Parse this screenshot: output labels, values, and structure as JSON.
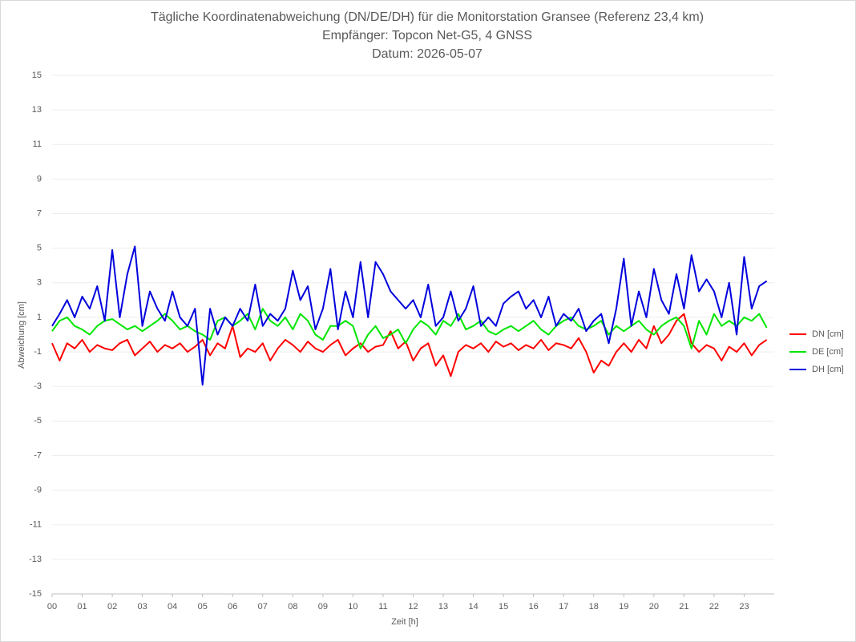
{
  "chart_data": {
    "type": "line",
    "title": "Tägliche Koordinatenabweichung (DN/DE/DH) für die Monitorstation Gransee (Referenz 23,4 km)",
    "subtitle": [
      "Empfänger: Topcon Net-G5, 4 GNSS",
      "Datum: 2026-05-07"
    ],
    "x_label": "Zeit [h]",
    "y_label": "Abweichung [cm]",
    "x": [
      0,
      0.25,
      0.5,
      0.75,
      1,
      1.25,
      1.5,
      1.75,
      2,
      2.25,
      2.5,
      2.75,
      3,
      3.25,
      3.5,
      3.75,
      4,
      4.25,
      4.5,
      4.75,
      5,
      5.25,
      5.5,
      5.75,
      6,
      6.25,
      6.5,
      6.75,
      7,
      7.25,
      7.5,
      7.75,
      8,
      8.25,
      8.5,
      8.75,
      9,
      9.25,
      9.5,
      9.75,
      10,
      10.25,
      10.5,
      10.75,
      11,
      11.25,
      11.5,
      11.75,
      12,
      12.25,
      12.5,
      12.75,
      13,
      13.25,
      13.5,
      13.75,
      14,
      14.25,
      14.5,
      14.75,
      15,
      15.25,
      15.5,
      15.75,
      16,
      16.25,
      16.5,
      16.75,
      17,
      17.25,
      17.5,
      17.75,
      18,
      18.25,
      18.5,
      18.75,
      19,
      19.25,
      19.5,
      19.75,
      20,
      20.25,
      20.5,
      20.75,
      21,
      21.25,
      21.5,
      21.75,
      22,
      22.25,
      22.5,
      22.75,
      23,
      23.25,
      23.5,
      23.75
    ],
    "series": [
      {
        "name": "DN [cm]",
        "color": "#ff0000",
        "values": [
          -0.5,
          -1.5,
          -0.5,
          -0.8,
          -0.3,
          -1.0,
          -0.6,
          -0.8,
          -0.9,
          -0.5,
          -0.3,
          -1.2,
          -0.8,
          -0.4,
          -1.0,
          -0.6,
          -0.8,
          -0.5,
          -1.0,
          -0.7,
          -0.3,
          -1.2,
          -0.5,
          -0.8,
          0.5,
          -1.3,
          -0.8,
          -1.0,
          -0.5,
          -1.5,
          -0.8,
          -0.3,
          -0.6,
          -1.0,
          -0.4,
          -0.8,
          -1.0,
          -0.6,
          -0.3,
          -1.2,
          -0.8,
          -0.5,
          -1.0,
          -0.7,
          -0.6,
          0.2,
          -0.8,
          -0.4,
          -1.5,
          -0.8,
          -0.5,
          -1.8,
          -1.2,
          -2.4,
          -1.0,
          -0.6,
          -0.8,
          -0.5,
          -1.0,
          -0.4,
          -0.7,
          -0.5,
          -0.9,
          -0.6,
          -0.8,
          -0.3,
          -0.9,
          -0.5,
          -0.6,
          -0.8,
          -0.2,
          -1.0,
          -2.2,
          -1.5,
          -1.8,
          -1.0,
          -0.5,
          -1.0,
          -0.3,
          -0.8,
          0.5,
          -0.5,
          0.0,
          0.8,
          1.2,
          -0.5,
          -1.0,
          -0.6,
          -0.8,
          -1.5,
          -0.7,
          -1.0,
          -0.5,
          -1.2,
          -0.6,
          -0.3
        ]
      },
      {
        "name": "DE [cm]",
        "color": "#00e600",
        "values": [
          0.2,
          0.8,
          1.0,
          0.5,
          0.3,
          0.0,
          0.5,
          0.8,
          0.9,
          0.6,
          0.3,
          0.5,
          0.2,
          0.5,
          0.8,
          1.2,
          0.8,
          0.3,
          0.5,
          0.2,
          0.0,
          -0.3,
          0.8,
          1.0,
          0.5,
          0.8,
          1.2,
          0.3,
          1.5,
          0.8,
          0.5,
          1.0,
          0.3,
          1.2,
          0.8,
          0.0,
          -0.3,
          0.5,
          0.5,
          0.8,
          0.5,
          -0.8,
          0.0,
          0.5,
          -0.2,
          0.0,
          0.3,
          -0.5,
          0.3,
          0.8,
          0.5,
          0.0,
          0.8,
          0.5,
          1.2,
          0.3,
          0.5,
          0.8,
          0.2,
          0.0,
          0.3,
          0.5,
          0.2,
          0.5,
          0.8,
          0.3,
          0.0,
          0.5,
          0.8,
          1.0,
          0.5,
          0.3,
          0.5,
          0.8,
          0.0,
          0.5,
          0.2,
          0.5,
          0.8,
          0.3,
          0.0,
          0.5,
          0.8,
          1.0,
          0.5,
          -0.8,
          0.8,
          0.0,
          1.2,
          0.5,
          0.8,
          0.5,
          1.0,
          0.8,
          1.2,
          0.4
        ]
      },
      {
        "name": "DH [cm]",
        "color": "#0000dd",
        "values": [
          0.5,
          1.2,
          2.0,
          1.0,
          2.2,
          1.5,
          2.8,
          0.8,
          4.9,
          1.0,
          3.5,
          5.1,
          0.5,
          2.5,
          1.5,
          0.8,
          2.5,
          1.0,
          0.5,
          1.5,
          -2.9,
          1.5,
          0.0,
          1.0,
          0.5,
          1.5,
          0.8,
          2.9,
          0.5,
          1.2,
          0.8,
          1.5,
          3.7,
          2.0,
          2.8,
          0.3,
          1.5,
          3.8,
          0.3,
          2.5,
          1.0,
          4.2,
          1.0,
          4.2,
          3.5,
          2.5,
          2.0,
          1.5,
          2.0,
          1.0,
          2.9,
          0.5,
          1.0,
          2.5,
          0.8,
          1.5,
          2.8,
          0.5,
          1.0,
          0.5,
          1.8,
          2.2,
          2.5,
          1.5,
          2.0,
          1.0,
          2.2,
          0.5,
          1.2,
          0.8,
          1.5,
          0.2,
          0.8,
          1.2,
          -0.5,
          1.5,
          4.4,
          0.5,
          2.5,
          1.0,
          3.8,
          2.0,
          1.2,
          3.5,
          1.5,
          4.6,
          2.5,
          3.2,
          2.5,
          1.0,
          3.0,
          0.0,
          4.5,
          1.5,
          2.8,
          3.1
        ]
      }
    ],
    "xlim": [
      0,
      24
    ],
    "xticks": [
      {
        "value": 0,
        "label": "00"
      },
      {
        "value": 1,
        "label": "01"
      },
      {
        "value": 2,
        "label": "02"
      },
      {
        "value": 3,
        "label": "03"
      },
      {
        "value": 4,
        "label": "04"
      },
      {
        "value": 5,
        "label": "05"
      },
      {
        "value": 6,
        "label": "06"
      },
      {
        "value": 7,
        "label": "07"
      },
      {
        "value": 8,
        "label": "08"
      },
      {
        "value": 9,
        "label": "09"
      },
      10,
      11,
      12,
      13,
      14,
      15,
      16,
      17,
      18,
      19,
      20,
      21,
      22,
      23
    ],
    "ylim": [
      -15,
      15
    ],
    "yticks": [
      -15,
      -13,
      -11,
      -9,
      -7,
      -5,
      -3,
      -1,
      1,
      3,
      5,
      7,
      9,
      11,
      13,
      15
    ],
    "grid": true,
    "legend": "right"
  }
}
